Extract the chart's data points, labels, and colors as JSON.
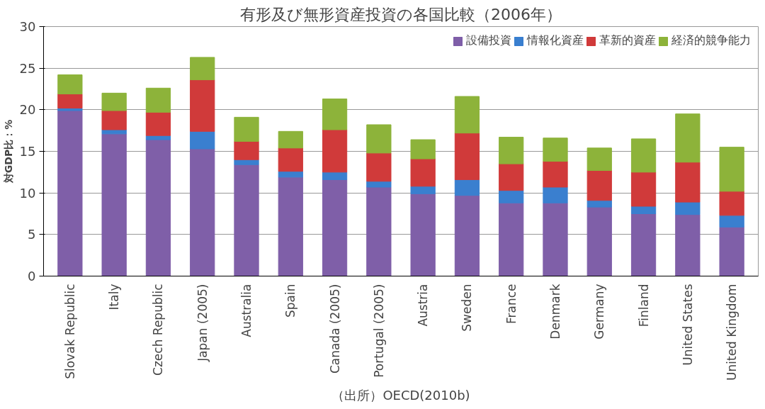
{
  "chart_data": {
    "type": "bar",
    "stacked": true,
    "title": "有形及び無形資産投資の各国比較（2006年）",
    "ylabel": "対GDP比：%",
    "categories": [
      "Slovak Republic",
      "Italy",
      "Czech Republic",
      "Japan (2005)",
      "Australia",
      "Spain",
      "Canada (2005)",
      "Portugal (2005)",
      "Austria",
      "Sweden",
      "France",
      "Denmark",
      "Germany",
      "Finland",
      "United States",
      "United Kingdom"
    ],
    "series": [
      {
        "name": "設備投資",
        "color": "#7f5fa8",
        "values": [
          19.9,
          17.1,
          16.4,
          15.3,
          13.4,
          11.9,
          11.6,
          10.7,
          9.9,
          9.7,
          8.8,
          8.8,
          8.3,
          7.5,
          7.4,
          5.9
        ]
      },
      {
        "name": "情報化資産",
        "color": "#3a7fcf",
        "values": [
          0.3,
          0.5,
          0.5,
          2.1,
          0.6,
          0.7,
          0.9,
          0.7,
          0.9,
          1.9,
          1.5,
          1.9,
          0.8,
          0.9,
          1.5,
          1.4
        ]
      },
      {
        "name": "革新的資産",
        "color": "#d03a3a",
        "values": [
          1.7,
          2.3,
          2.8,
          6.2,
          2.2,
          2.8,
          5.1,
          3.4,
          3.3,
          5.6,
          3.2,
          3.1,
          3.6,
          4.1,
          4.8,
          2.9
        ]
      },
      {
        "name": "経済的競争能力",
        "color": "#8db33a",
        "values": [
          2.3,
          2.1,
          2.9,
          2.7,
          2.9,
          2.0,
          3.7,
          3.4,
          2.3,
          4.4,
          3.2,
          2.8,
          2.7,
          4.0,
          5.8,
          5.3
        ]
      }
    ],
    "ylim": [
      0,
      30
    ],
    "yticks": [
      0,
      5,
      10,
      15,
      20,
      25,
      30
    ],
    "grid": "y",
    "legend": "top right",
    "annotations": [
      "（出所）OECD(2010b)"
    ]
  }
}
